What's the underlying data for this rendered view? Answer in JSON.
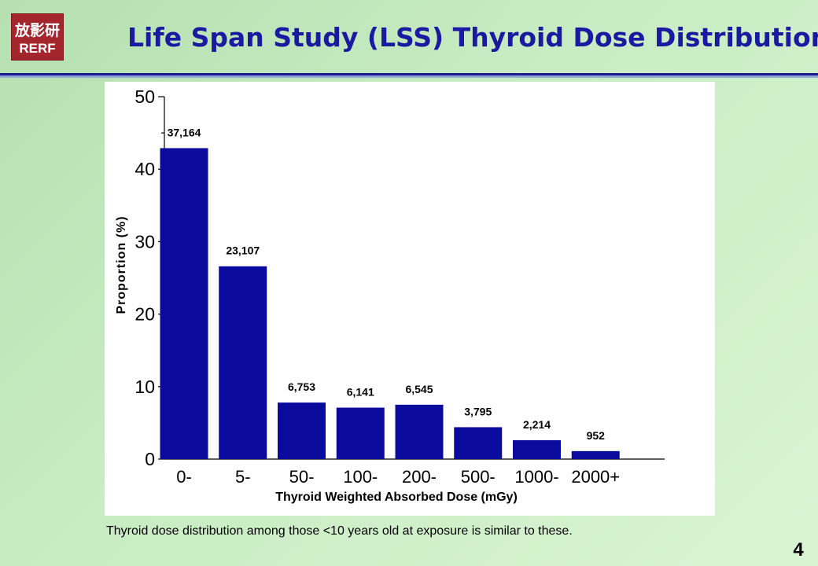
{
  "header": {
    "title": "Life Span Study (LSS) Thyroid Dose Distribution",
    "logo_kanji": "放影研",
    "logo_text": "RERF"
  },
  "colors": {
    "bar": "#0a0a9c",
    "title": "#1a1aa0",
    "logo_bg": "#a3262d"
  },
  "chart_data": {
    "type": "bar",
    "categories": [
      "0-",
      "5-",
      "50-",
      "100-",
      "200-",
      "500-",
      "1000-",
      "2000+"
    ],
    "values": [
      42.9,
      26.6,
      7.8,
      7.1,
      7.5,
      4.4,
      2.6,
      1.1
    ],
    "data_labels": [
      "37,164",
      "23,107",
      "6,753",
      "6,141",
      "6,545",
      "3,795",
      "2,214",
      "952"
    ],
    "xlabel": "Thyroid Weighted Absorbed Dose (mGy)",
    "ylabel": "Proportion (%)",
    "ylim": [
      0,
      50
    ],
    "yticks": [
      0,
      10,
      20,
      30,
      40,
      50
    ],
    "grid": false
  },
  "footer": {
    "caption": "Thyroid dose distribution among those <10 years old at exposure is similar to these.",
    "page_number": "4"
  }
}
